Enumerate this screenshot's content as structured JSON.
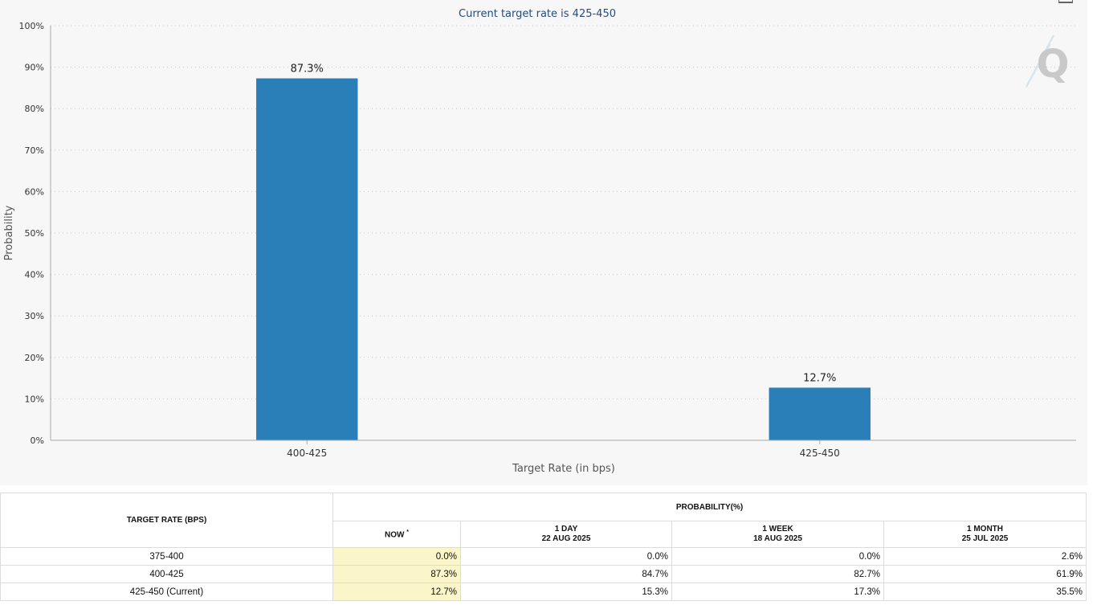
{
  "chart_data": {
    "type": "bar",
    "title": "Current target rate is 425-450",
    "xlabel": "Target Rate (in bps)",
    "ylabel": "Probability",
    "categories": [
      "400-425",
      "425-450"
    ],
    "values": [
      87.3,
      12.7
    ],
    "data_labels": [
      "87.3%",
      "12.7%"
    ],
    "ylim": [
      0,
      100
    ],
    "y_ticks": [
      "0%",
      "10%",
      "20%",
      "30%",
      "40%",
      "50%",
      "60%",
      "70%",
      "80%",
      "90%",
      "100%"
    ],
    "grid": true,
    "bar_color": "#2a7fb8",
    "legend": "none"
  },
  "table": {
    "col_target_rate": "TARGET RATE (BPS)",
    "group_header": "PROBABILITY(%)",
    "columns": [
      {
        "label": "NOW",
        "sup": "*",
        "date": ""
      },
      {
        "label": "1 DAY",
        "date": "22 AUG 2025"
      },
      {
        "label": "1 WEEK",
        "date": "18 AUG 2025"
      },
      {
        "label": "1 MONTH",
        "date": "25 JUL 2025"
      }
    ],
    "rows": [
      {
        "rate": "375-400",
        "now": "0.0%",
        "day": "0.0%",
        "week": "0.0%",
        "month": "2.6%"
      },
      {
        "rate": "400-425",
        "now": "87.3%",
        "day": "84.7%",
        "week": "82.7%",
        "month": "61.9%"
      },
      {
        "rate": "425-450 (Current)",
        "now": "12.7%",
        "day": "15.3%",
        "week": "17.3%",
        "month": "35.5%"
      }
    ]
  },
  "colors": {
    "accent": "#2a7fb8",
    "now_highlight": "#fbf6c9",
    "title": "#274b7a"
  },
  "icons": {
    "watermark": "quikstrike-q-logo",
    "menu": "chart-menu-icon"
  }
}
